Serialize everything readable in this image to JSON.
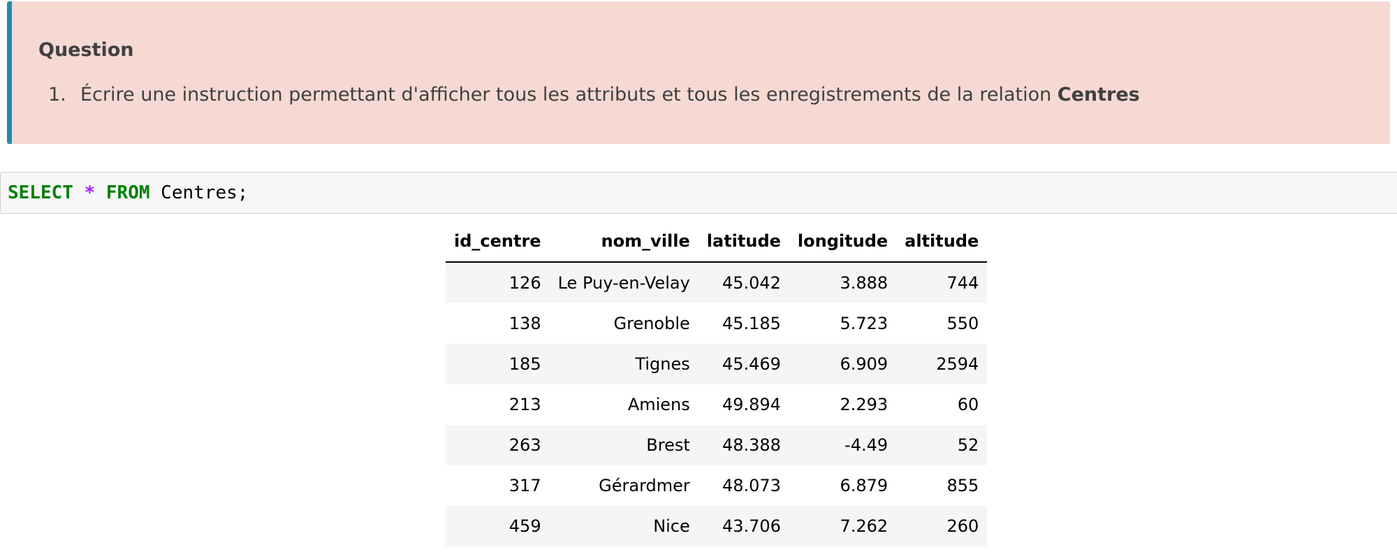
{
  "question": {
    "title": "Question",
    "items": [
      {
        "number": "1.",
        "text": "Écrire une instruction permettant d'afficher tous les attributs et tous les enregistrements de la relation ",
        "emphasis": "Centres"
      }
    ]
  },
  "code": {
    "kw_select": "SELECT",
    "star": "*",
    "kw_from": "FROM",
    "table_ident": "Centres;"
  },
  "table": {
    "columns": [
      "id_centre",
      "nom_ville",
      "latitude",
      "longitude",
      "altitude"
    ],
    "rows": [
      [
        "126",
        "Le Puy-en-Velay",
        "45.042",
        "3.888",
        "744"
      ],
      [
        "138",
        "Grenoble",
        "45.185",
        "5.723",
        "550"
      ],
      [
        "185",
        "Tignes",
        "45.469",
        "6.909",
        "2594"
      ],
      [
        "213",
        "Amiens",
        "49.894",
        "2.293",
        "60"
      ],
      [
        "263",
        "Brest",
        "48.388",
        "-4.49",
        "52"
      ],
      [
        "317",
        "Gérardmer",
        "48.073",
        "6.879",
        "855"
      ],
      [
        "459",
        "Nice",
        "43.706",
        "7.262",
        "260"
      ]
    ]
  },
  "colors": {
    "question_bg": "#f5d9d2",
    "question_border": "#2489a9",
    "keyword": "#008000",
    "operator": "#aa22ff",
    "row_stripe": "#f5f5f5"
  }
}
